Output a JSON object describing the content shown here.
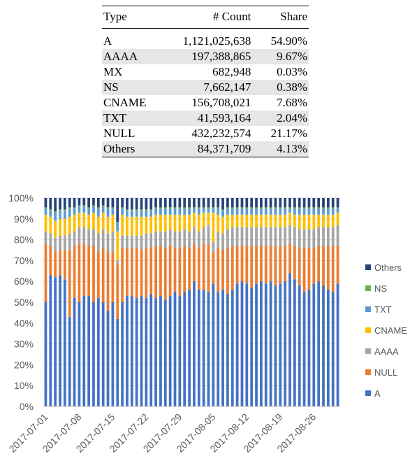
{
  "table": {
    "headers": [
      "Type",
      "# Count",
      "Share"
    ],
    "rows": [
      {
        "type": "A",
        "count": "1,121,025,638",
        "share": "54.90%"
      },
      {
        "type": "AAAA",
        "count": "197,388,865",
        "share": "9.67%"
      },
      {
        "type": "MX",
        "count": "682,948",
        "share": "0.03%"
      },
      {
        "type": "NS",
        "count": "7,662,147",
        "share": "0.38%"
      },
      {
        "type": "CNAME",
        "count": "156,708,021",
        "share": "7.68%"
      },
      {
        "type": "TXT",
        "count": "41,593,164",
        "share": "2.04%"
      },
      {
        "type": "NULL",
        "count": "432,232,574",
        "share": "21.17%"
      },
      {
        "type": "Others",
        "count": "84,371,709",
        "share": "4.13%"
      }
    ]
  },
  "chart_data": {
    "type": "bar",
    "stacked": true,
    "percent": true,
    "title": "",
    "xlabel": "",
    "ylabel": "",
    "ylim": [
      0,
      100
    ],
    "y_ticks": [
      "0%",
      "10%",
      "20%",
      "30%",
      "40%",
      "50%",
      "60%",
      "70%",
      "80%",
      "90%",
      "100%"
    ],
    "x_tick_labels": [
      "2017-07-01",
      "2017-07-08",
      "2017-07-15",
      "2017-07-22",
      "2017-07-29",
      "2017-08-05",
      "2017-08-12",
      "2017-08-19",
      "2017-08-26"
    ],
    "legend_position": "right",
    "legend_order": [
      "Others",
      "NS",
      "TXT",
      "CNAME",
      "AAAA",
      "NULL",
      "A"
    ],
    "colors": {
      "A": "#4472c4",
      "NULL": "#ed7d31",
      "AAAA": "#a5a5a5",
      "CNAME": "#ffc000",
      "TXT": "#5b9bd5",
      "NS": "#70ad47",
      "Others": "#264478"
    },
    "categories": [
      "2017-07-01",
      "2017-07-02",
      "2017-07-03",
      "2017-07-04",
      "2017-07-05",
      "2017-07-06",
      "2017-07-07",
      "2017-07-08",
      "2017-07-09",
      "2017-07-10",
      "2017-07-11",
      "2017-07-12",
      "2017-07-13",
      "2017-07-14",
      "2017-07-15",
      "2017-07-16",
      "2017-07-17",
      "2017-07-18",
      "2017-07-19",
      "2017-07-20",
      "2017-07-21",
      "2017-07-22",
      "2017-07-23",
      "2017-07-24",
      "2017-07-25",
      "2017-07-26",
      "2017-07-27",
      "2017-07-28",
      "2017-07-29",
      "2017-07-30",
      "2017-07-31",
      "2017-08-01",
      "2017-08-02",
      "2017-08-03",
      "2017-08-04",
      "2017-08-05",
      "2017-08-06",
      "2017-08-07",
      "2017-08-08",
      "2017-08-09",
      "2017-08-10",
      "2017-08-11",
      "2017-08-12",
      "2017-08-13",
      "2017-08-14",
      "2017-08-15",
      "2017-08-16",
      "2017-08-17",
      "2017-08-18",
      "2017-08-19",
      "2017-08-20",
      "2017-08-21",
      "2017-08-22",
      "2017-08-23",
      "2017-08-24",
      "2017-08-25",
      "2017-08-26",
      "2017-08-27",
      "2017-08-28",
      "2017-08-29",
      "2017-08-30",
      "2017-08-31"
    ],
    "series": [
      {
        "name": "A",
        "values": [
          50,
          63,
          62,
          63,
          61,
          43,
          52,
          50,
          53,
          53,
          50,
          52,
          50,
          46,
          50,
          42,
          50,
          53,
          53,
          52,
          53,
          52,
          54,
          52,
          53,
          51,
          53,
          55,
          53,
          55,
          56,
          60,
          56,
          56,
          55,
          59,
          55,
          56,
          54,
          56,
          59,
          60,
          59,
          57,
          59,
          60,
          59,
          60,
          58,
          59,
          60,
          64,
          61,
          58,
          55,
          56,
          59,
          60,
          58,
          56,
          55,
          59
        ]
      },
      {
        "name": "NULL",
        "values": [
          28,
          14,
          12,
          12,
          14,
          32,
          25,
          28,
          25,
          24,
          27,
          22,
          26,
          28,
          24,
          26,
          26,
          23,
          23,
          24,
          22,
          24,
          22,
          25,
          24,
          25,
          24,
          21,
          23,
          22,
          20,
          18,
          20,
          22,
          23,
          15,
          21,
          19,
          22,
          21,
          18,
          17,
          18,
          20,
          18,
          17,
          18,
          17,
          19,
          18,
          17,
          14,
          16,
          18,
          21,
          20,
          17,
          17,
          19,
          21,
          22,
          18
        ]
      },
      {
        "name": "AAAA",
        "values": [
          6,
          6,
          7,
          7,
          7,
          8,
          7,
          8,
          8,
          8,
          8,
          9,
          9,
          9,
          10,
          2,
          6,
          6,
          6,
          6,
          7,
          7,
          7,
          7,
          7,
          8,
          8,
          8,
          8,
          8,
          8,
          8,
          8,
          8,
          9,
          5,
          8,
          8,
          9,
          9,
          9,
          9,
          9,
          9,
          9,
          9,
          9,
          9,
          9,
          9,
          9,
          9,
          9,
          9,
          9,
          9,
          9,
          9,
          9,
          9,
          9,
          10
        ]
      },
      {
        "name": "CNAME",
        "values": [
          8,
          8,
          8,
          8,
          8,
          8,
          8,
          7,
          7,
          7,
          8,
          8,
          8,
          8,
          8,
          14,
          10,
          9,
          9,
          9,
          9,
          8,
          8,
          8,
          8,
          8,
          7,
          8,
          8,
          7,
          8,
          7,
          8,
          7,
          6,
          14,
          8,
          8,
          7,
          6,
          6,
          6,
          6,
          6,
          6,
          6,
          6,
          6,
          6,
          6,
          6,
          6,
          6,
          7,
          7,
          7,
          7,
          6,
          6,
          6,
          6,
          6
        ]
      },
      {
        "name": "TXT",
        "values": [
          3,
          3,
          4,
          4,
          4,
          4,
          3,
          3,
          3,
          3,
          3,
          4,
          3,
          4,
          3,
          4,
          3,
          3,
          3,
          3,
          3,
          3,
          3,
          3,
          3,
          3,
          3,
          3,
          3,
          3,
          3,
          2,
          3,
          2,
          2,
          2,
          3,
          3,
          3,
          3,
          3,
          3,
          3,
          3,
          3,
          3,
          3,
          3,
          3,
          3,
          3,
          2,
          3,
          3,
          3,
          3,
          3,
          3,
          3,
          3,
          3,
          2
        ]
      },
      {
        "name": "NS",
        "values": [
          0.5,
          0.5,
          0.5,
          0.5,
          0.5,
          0.5,
          0.5,
          0.5,
          0.5,
          0.5,
          0.5,
          0.5,
          0.5,
          0.5,
          0.5,
          0.5,
          0.5,
          0.5,
          0.5,
          0.5,
          0.5,
          0.5,
          0.5,
          0.5,
          0.5,
          0.5,
          0.5,
          0.5,
          0.5,
          0.5,
          0.5,
          0.5,
          0.5,
          0.5,
          0.5,
          0.5,
          0.5,
          0.5,
          0.5,
          0.5,
          0.5,
          0.5,
          0.5,
          0.5,
          0.5,
          0.5,
          0.5,
          0.5,
          0.5,
          0.5,
          0.5,
          0.5,
          0.5,
          0.5,
          0.5,
          0.5,
          0.5,
          0.5,
          0.5,
          0.5,
          0.5,
          0.5
        ]
      },
      {
        "name": "Others",
        "values": [
          4.5,
          5.5,
          6.5,
          5.5,
          5.5,
          4.5,
          4.5,
          3.5,
          3.5,
          4.5,
          3.5,
          4.5,
          3.5,
          4.5,
          4.5,
          11.5,
          4.5,
          5.5,
          5.5,
          5.5,
          5.5,
          5.5,
          5.5,
          4.5,
          4.5,
          4.5,
          4.5,
          4.5,
          4.5,
          4.5,
          4.5,
          4.5,
          4.5,
          4.5,
          4.5,
          4.5,
          4.5,
          5.5,
          4.5,
          4.5,
          4.5,
          4.5,
          4.5,
          4.5,
          4.5,
          4.5,
          4.5,
          4.5,
          4.5,
          4.5,
          4.5,
          4.5,
          4.5,
          4.5,
          4.5,
          4.5,
          4.5,
          4.5,
          4.5,
          4.5,
          4.5,
          4.5
        ]
      }
    ]
  }
}
